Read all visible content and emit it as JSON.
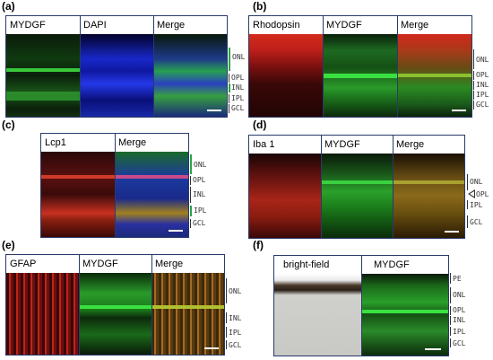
{
  "panels": {
    "a": {
      "label": "(a)",
      "titles": [
        "MYDGF",
        "DAPI",
        "Merge"
      ],
      "layers": [
        "ONL",
        "OPL",
        "INL",
        "IPL",
        "GCL"
      ]
    },
    "b": {
      "label": "(b)",
      "titles": [
        "Rhodopsin",
        "MYDGF",
        "Merge"
      ],
      "layers": [
        "ONL",
        "OPL",
        "INL",
        "IPL",
        "GCL"
      ]
    },
    "c": {
      "label": "(c)",
      "titles": [
        "Lcp1",
        "Merge"
      ],
      "layers": [
        "ONL",
        "OPL",
        "INL",
        "IPL",
        "GCL"
      ]
    },
    "d": {
      "label": "(d)",
      "titles": [
        "Iba 1",
        "MYDGF",
        "Merge"
      ],
      "layers": [
        "ONL",
        "OPL",
        "IPL",
        "GCL"
      ]
    },
    "e": {
      "label": "(e)",
      "titles": [
        "GFAP",
        "MYDGF",
        "Merge"
      ],
      "layers": [
        "ONL",
        "INL",
        "IPL",
        "GCL"
      ]
    },
    "f": {
      "label": "(f)",
      "titles": [
        "bright-field",
        "MYDGF"
      ],
      "layers": [
        "PE",
        "ONL",
        "OPL",
        "INL",
        "IPL",
        "GCL"
      ]
    }
  },
  "colors": {
    "green": "#2fd23a",
    "red": "#d42a1c",
    "blue": "#2a3fe0",
    "frame": "#2a3a6a",
    "marker": "#2aa34a"
  }
}
